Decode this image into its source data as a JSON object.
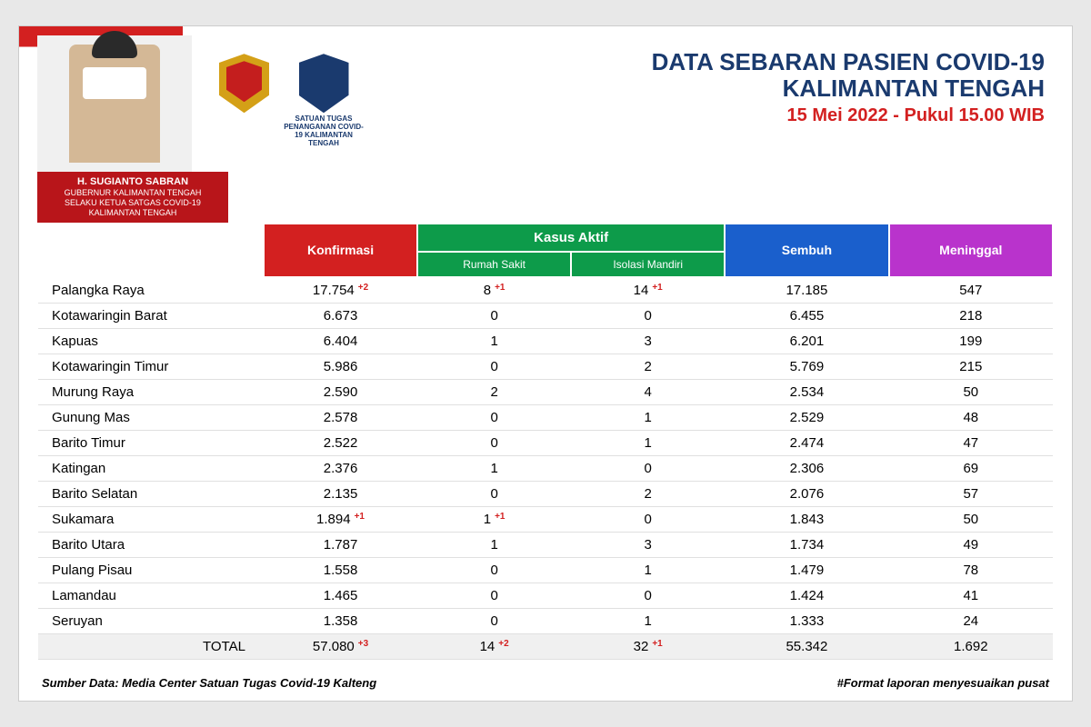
{
  "header": {
    "title_line1": "DATA SEBARAN PASIEN COVID-19",
    "title_line2": "KALIMANTAN TENGAH",
    "date_time": "15 Mei 2022 - Pukul 15.00 WIB",
    "governor_name": "H. SUGIANTO SABRAN",
    "governor_title1": "GUBERNUR KALIMANTAN TENGAH",
    "governor_title2": "SELAKU KETUA SATGAS COVID-19 KALIMANTAN TENGAH",
    "logo2_caption": "SATUAN TUGAS PENANGANAN COVID-19 KALIMANTAN TENGAH"
  },
  "table": {
    "type": "table",
    "columns": {
      "region": "",
      "konfirmasi": "Konfirmasi",
      "kasus_aktif": "Kasus Aktif",
      "rumah_sakit": "Rumah Sakit",
      "isolasi_mandiri": "Isolasi Mandiri",
      "sembuh": "Sembuh",
      "meninggal": "Meninggal"
    },
    "header_colors": {
      "konfirmasi": "#d32020",
      "kasus_aktif": "#0d9b4a",
      "sembuh": "#1a5fcc",
      "meninggal": "#b933cc"
    },
    "rows": [
      {
        "region": "Palangka Raya",
        "konf": "17.754",
        "konf_d": "+2",
        "rs": "8",
        "rs_d": "+1",
        "iso": "14",
        "iso_d": "+1",
        "sembuh": "17.185",
        "meninggal": "547"
      },
      {
        "region": "Kotawaringin Barat",
        "konf": "6.673",
        "rs": "0",
        "iso": "0",
        "sembuh": "6.455",
        "meninggal": "218"
      },
      {
        "region": "Kapuas",
        "konf": "6.404",
        "rs": "1",
        "iso": "3",
        "sembuh": "6.201",
        "meninggal": "199"
      },
      {
        "region": "Kotawaringin Timur",
        "konf": "5.986",
        "rs": "0",
        "iso": "2",
        "sembuh": "5.769",
        "meninggal": "215"
      },
      {
        "region": "Murung Raya",
        "konf": "2.590",
        "rs": "2",
        "iso": "4",
        "sembuh": "2.534",
        "meninggal": "50"
      },
      {
        "region": "Gunung Mas",
        "konf": "2.578",
        "rs": "0",
        "iso": "1",
        "sembuh": "2.529",
        "meninggal": "48"
      },
      {
        "region": "Barito Timur",
        "konf": "2.522",
        "rs": "0",
        "iso": "1",
        "sembuh": "2.474",
        "meninggal": "47"
      },
      {
        "region": "Katingan",
        "konf": "2.376",
        "rs": "1",
        "iso": "0",
        "sembuh": "2.306",
        "meninggal": "69"
      },
      {
        "region": "Barito Selatan",
        "konf": "2.135",
        "rs": "0",
        "iso": "2",
        "sembuh": "2.076",
        "meninggal": "57"
      },
      {
        "region": "Sukamara",
        "konf": "1.894",
        "konf_d": "+1",
        "rs": "1",
        "rs_d": "+1",
        "iso": "0",
        "sembuh": "1.843",
        "meninggal": "50"
      },
      {
        "region": "Barito Utara",
        "konf": "1.787",
        "rs": "1",
        "iso": "3",
        "sembuh": "1.734",
        "meninggal": "49"
      },
      {
        "region": "Pulang Pisau",
        "konf": "1.558",
        "rs": "0",
        "iso": "1",
        "sembuh": "1.479",
        "meninggal": "78"
      },
      {
        "region": "Lamandau",
        "konf": "1.465",
        "rs": "0",
        "iso": "0",
        "sembuh": "1.424",
        "meninggal": "41"
      },
      {
        "region": "Seruyan",
        "konf": "1.358",
        "rs": "0",
        "iso": "1",
        "sembuh": "1.333",
        "meninggal": "24"
      }
    ],
    "total": {
      "region": "TOTAL",
      "konf": "57.080",
      "konf_d": "+3",
      "rs": "14",
      "rs_d": "+2",
      "iso": "32",
      "iso_d": "+1",
      "sembuh": "55.342",
      "meninggal": "1.692"
    },
    "row_font_size": 15,
    "delta_color": "#d32020"
  },
  "footer": {
    "source": "Sumber Data: Media Center Satuan Tugas Covid-19 Kalteng",
    "note": "#Format laporan menyesuaikan pusat"
  }
}
